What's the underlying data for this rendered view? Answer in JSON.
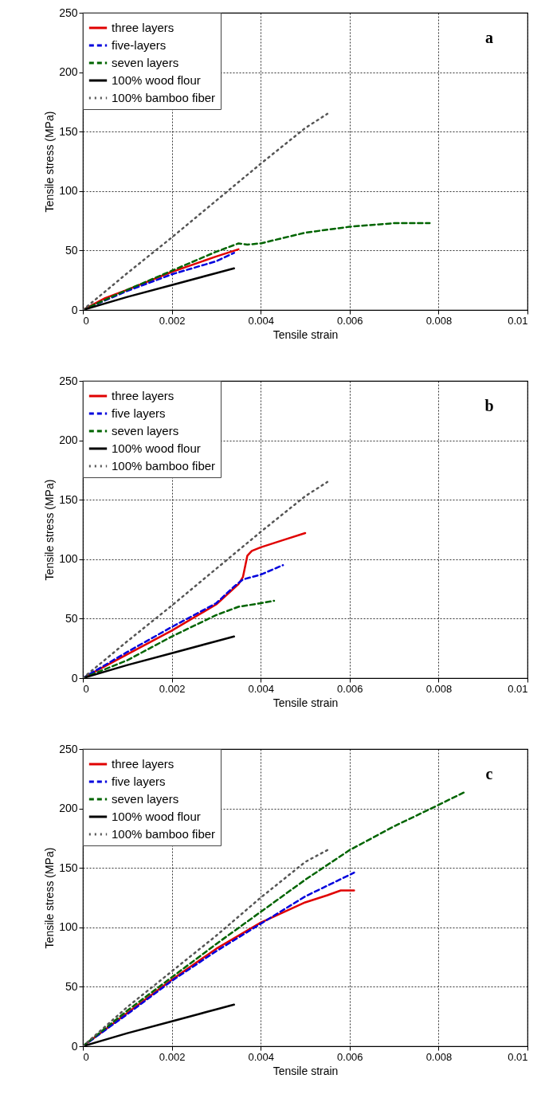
{
  "chart_data": [
    {
      "type": "line",
      "xlabel": "Tensile strain",
      "ylabel": "Tensile stress (MPa)",
      "annotations": [
        "a"
      ],
      "xlim": [
        0,
        0.01
      ],
      "xticks": [
        0,
        0.002,
        0.004,
        0.006,
        0.008,
        0.01
      ],
      "ylim": [
        0,
        250
      ],
      "yticks": [
        0,
        50,
        100,
        150,
        200,
        250
      ],
      "grid": true,
      "legend": "top left",
      "series": [
        {
          "name": "three layers",
          "color": "#e00000",
          "line_style": "solid",
          "x": [
            0,
            0.0005,
            0.001,
            0.002,
            0.003,
            0.0035
          ],
          "values": [
            0,
            10,
            17,
            32,
            45,
            51
          ]
        },
        {
          "name": "five-layers",
          "color": "#0000dd",
          "line_style": "dashed",
          "x": [
            0,
            0.001,
            0.002,
            0.003,
            0.0034
          ],
          "values": [
            0,
            16,
            30,
            41,
            48
          ]
        },
        {
          "name": "seven layers",
          "color": "#006400",
          "line_style": "dashed",
          "x": [
            0,
            0.001,
            0.002,
            0.003,
            0.0035,
            0.0037,
            0.004,
            0.005,
            0.006,
            0.007,
            0.0078
          ],
          "values": [
            0,
            17,
            33,
            49,
            56,
            55,
            56,
            65,
            70,
            73,
            73
          ]
        },
        {
          "name": "100% wood flour",
          "color": "#000000",
          "line_style": "solid",
          "x": [
            0,
            0.001,
            0.002,
            0.003,
            0.0034
          ],
          "values": [
            0,
            11,
            21,
            31,
            35
          ]
        },
        {
          "name": "100% bamboo fiber",
          "color": "#555555",
          "line_style": "dotted",
          "x": [
            0,
            0.001,
            0.002,
            0.003,
            0.004,
            0.005,
            0.0055
          ],
          "values": [
            0,
            31,
            61,
            92,
            123,
            153,
            165
          ]
        }
      ]
    },
    {
      "type": "line",
      "xlabel": "Tensile strain",
      "ylabel": "Tensile stress (MPa)",
      "annotations": [
        "b"
      ],
      "xlim": [
        0,
        0.01
      ],
      "xticks": [
        0,
        0.002,
        0.004,
        0.006,
        0.008,
        0.01
      ],
      "ylim": [
        0,
        250
      ],
      "yticks": [
        0,
        50,
        100,
        150,
        200,
        250
      ],
      "grid": true,
      "legend": "top left",
      "series": [
        {
          "name": "three layers",
          "color": "#e00000",
          "line_style": "solid",
          "x": [
            0,
            0.001,
            0.002,
            0.003,
            0.0035,
            0.0036,
            0.0037,
            0.0038,
            0.004,
            0.0045,
            0.005
          ],
          "values": [
            0,
            20,
            40,
            62,
            79,
            85,
            103,
            107,
            110,
            116,
            122
          ]
        },
        {
          "name": "five layers",
          "color": "#0000dd",
          "line_style": "dashed",
          "x": [
            0,
            0.001,
            0.002,
            0.003,
            0.0034,
            0.0036,
            0.004,
            0.0045
          ],
          "values": [
            0,
            22,
            43,
            63,
            77,
            83,
            87,
            95
          ]
        },
        {
          "name": "seven layers",
          "color": "#006400",
          "line_style": "dashed",
          "x": [
            0,
            0.001,
            0.002,
            0.003,
            0.0035,
            0.004,
            0.0043
          ],
          "values": [
            0,
            15,
            35,
            53,
            60,
            63,
            65
          ]
        },
        {
          "name": "100% wood flour",
          "color": "#000000",
          "line_style": "solid",
          "x": [
            0,
            0.001,
            0.002,
            0.003,
            0.0034
          ],
          "values": [
            0,
            11,
            21,
            31,
            35
          ]
        },
        {
          "name": "100% bamboo fiber",
          "color": "#555555",
          "line_style": "dotted",
          "x": [
            0,
            0.001,
            0.002,
            0.003,
            0.004,
            0.005,
            0.0055
          ],
          "values": [
            0,
            31,
            61,
            92,
            123,
            153,
            165
          ]
        }
      ]
    },
    {
      "type": "line",
      "xlabel": "Tensile strain",
      "ylabel": "Tensile stress (MPa)",
      "annotations": [
        "c"
      ],
      "xlim": [
        0,
        0.01
      ],
      "xticks": [
        0,
        0.002,
        0.004,
        0.006,
        0.008,
        0.01
      ],
      "ylim": [
        0,
        250
      ],
      "yticks": [
        0,
        50,
        100,
        150,
        200,
        250
      ],
      "grid": true,
      "legend": "top left",
      "series": [
        {
          "name": "three layers",
          "color": "#e00000",
          "line_style": "solid",
          "x": [
            0,
            0.001,
            0.002,
            0.003,
            0.004,
            0.005,
            0.0055,
            0.0058,
            0.0061
          ],
          "values": [
            0,
            28,
            56,
            82,
            104,
            121,
            127,
            131,
            131
          ]
        },
        {
          "name": "five layers",
          "color": "#0000dd",
          "line_style": "dashed",
          "x": [
            0,
            0.001,
            0.002,
            0.003,
            0.004,
            0.005,
            0.0061
          ],
          "values": [
            0,
            27,
            55,
            80,
            103,
            126,
            146
          ]
        },
        {
          "name": "seven layers",
          "color": "#006400",
          "line_style": "dashed",
          "x": [
            0,
            0.001,
            0.002,
            0.003,
            0.004,
            0.005,
            0.006,
            0.007,
            0.008,
            0.0086
          ],
          "values": [
            0,
            30,
            58,
            86,
            113,
            140,
            165,
            185,
            203,
            214
          ]
        },
        {
          "name": "100% wood flour",
          "color": "#000000",
          "line_style": "solid",
          "x": [
            0,
            0.001,
            0.002,
            0.003,
            0.0034
          ],
          "values": [
            0,
            11,
            21,
            31,
            35
          ]
        },
        {
          "name": "100% bamboo fiber",
          "color": "#555555",
          "line_style": "dotted",
          "x": [
            0,
            0.001,
            0.002,
            0.003,
            0.004,
            0.005,
            0.0055
          ],
          "values": [
            0,
            33,
            63,
            93,
            125,
            155,
            165
          ]
        }
      ]
    }
  ]
}
